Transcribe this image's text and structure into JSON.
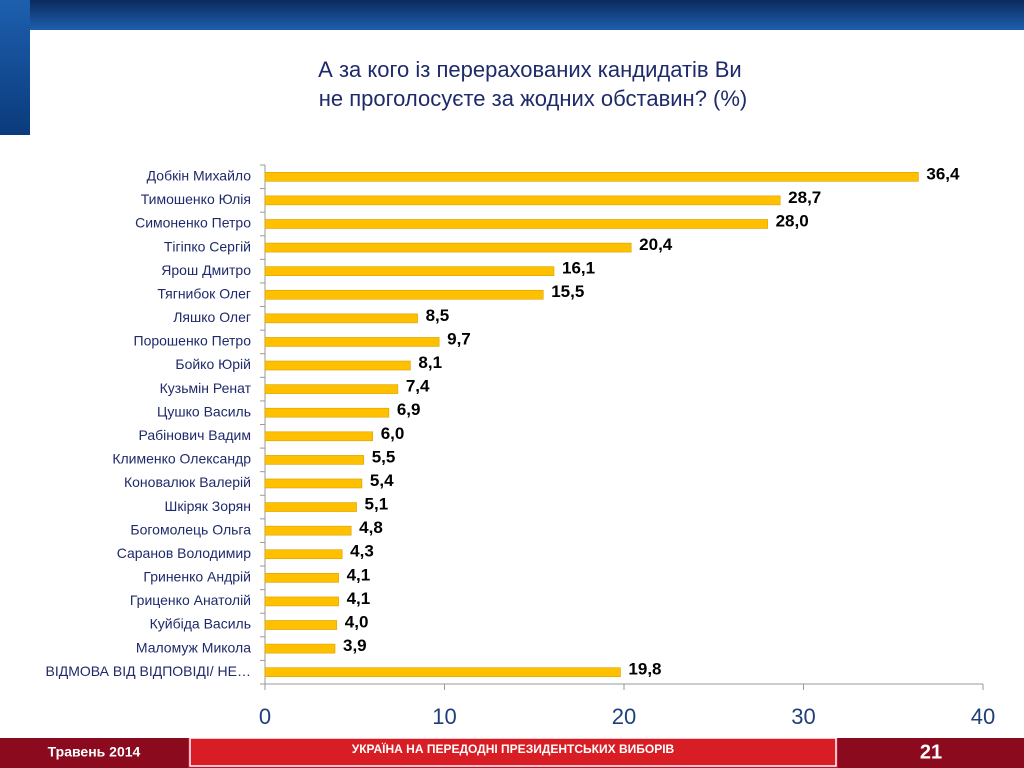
{
  "chart_data": {
    "type": "bar",
    "title": [
      "А за кого із перерахованих кандидатів Ви",
      "не проголосуєте за жодних обставин? (%)"
    ],
    "categories": [
      "Добкін Михайло",
      "Тимошенко Юлія",
      "Симоненко Петро",
      "Тігіпко Сергій",
      "Ярош Дмитро",
      "Тягнибок Олег",
      "Ляшко Олег",
      "Порошенко Петро",
      "Бойко Юрій",
      "Кузьмін Ренат",
      "Цушко Василь",
      "Рабінович Вадим",
      "Клименко Олександр",
      "Коновалюк Валерій",
      "Шкіряк Зорян",
      "Богомолець Ольга",
      "Саранов Володимир",
      "Гриненко Андрій",
      "Гриценко Анатолій",
      "Куйбіда Василь",
      "Маломуж Микола",
      "ВІДМОВА ВІД ВІДПОВІДІ/ НЕ…"
    ],
    "values": [
      36.4,
      28.7,
      28.0,
      20.4,
      16.1,
      15.5,
      8.5,
      9.7,
      8.1,
      7.4,
      6.9,
      6.0,
      5.5,
      5.4,
      5.1,
      4.8,
      4.3,
      4.1,
      4.1,
      4.0,
      3.9,
      19.8
    ],
    "value_labels": [
      "36,4",
      "28,7",
      "28,0",
      "20,4",
      "16,1",
      "15,5",
      "8,5",
      "9,7",
      "8,1",
      "7,4",
      "6,9",
      "6,0",
      "5,5",
      "5,4",
      "5,1",
      "4,8",
      "4,3",
      "4,1",
      "4,1",
      "4,0",
      "3,9",
      "19,8"
    ],
    "color": "#ffc000",
    "xlim": [
      0,
      40
    ],
    "xticks": [
      0,
      10,
      20,
      30,
      40
    ]
  },
  "footer": {
    "date": "Травень 2014",
    "caption": "УКРАЇНА НА ПЕРЕДОДНІ ПРЕЗИДЕНТСЬКИХ ВИБОРІВ",
    "page": "21"
  }
}
